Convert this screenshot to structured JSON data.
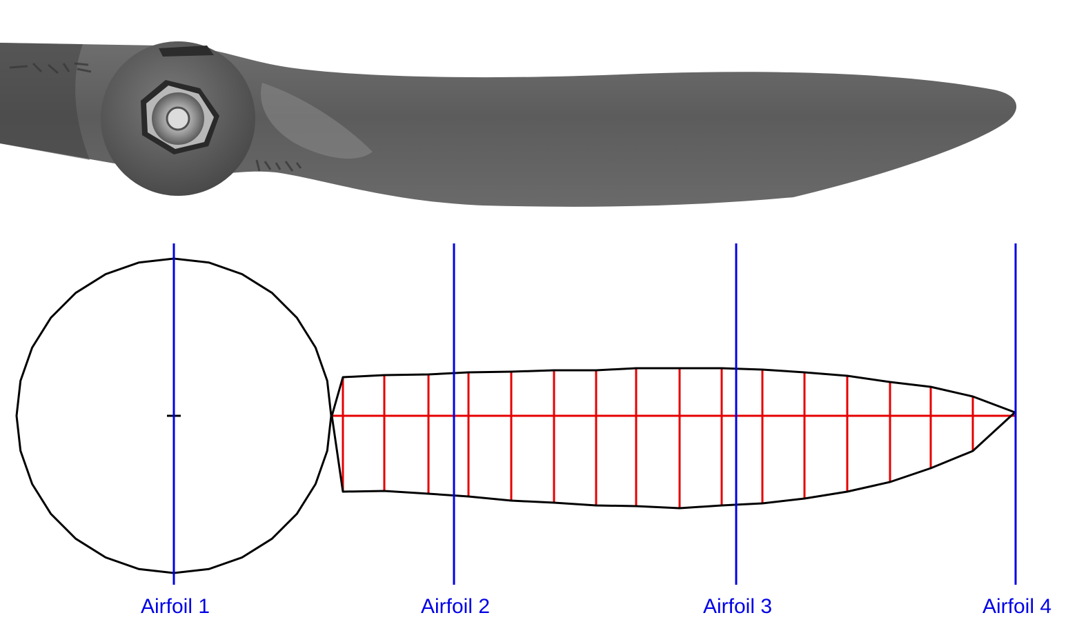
{
  "stations": [
    {
      "id": "airfoil-1",
      "label": "Airfoil 1"
    },
    {
      "id": "airfoil-2",
      "label": "Airfoil 2"
    },
    {
      "id": "airfoil-3",
      "label": "Airfoil 3"
    },
    {
      "id": "airfoil-4",
      "label": "Airfoil 4"
    }
  ],
  "colors": {
    "outline": "#000000",
    "section_lines": "#e60000",
    "station_lines": "#0000e6",
    "blade_dark": "#5a5a5a",
    "blade_light": "#8c8c8c"
  }
}
